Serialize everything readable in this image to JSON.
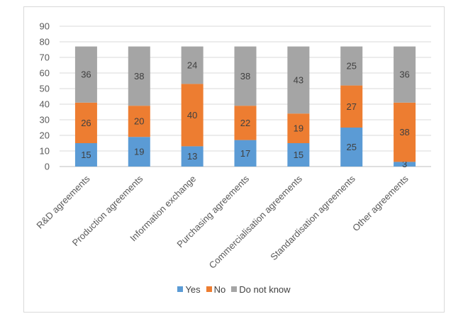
{
  "chart_data": {
    "type": "bar",
    "stacked": true,
    "categories": [
      "R&D agreements",
      "Production agreements",
      "Information exchange",
      "Purchasing agreements",
      "Commercialisation agreements",
      "Standardisation agreements",
      "Other agreements"
    ],
    "series": [
      {
        "name": "Yes",
        "color": "#5b9bd5",
        "values": [
          15,
          19,
          13,
          17,
          15,
          25,
          3
        ]
      },
      {
        "name": "No",
        "color": "#ed7d31",
        "values": [
          26,
          20,
          40,
          22,
          19,
          27,
          38
        ]
      },
      {
        "name": "Do not know",
        "color": "#a5a5a5",
        "values": [
          36,
          38,
          24,
          38,
          43,
          25,
          36
        ]
      }
    ],
    "ylim": [
      0,
      90
    ],
    "yticks": [
      0,
      10,
      20,
      30,
      40,
      50,
      60,
      70,
      80,
      90
    ],
    "grid": true,
    "legend_position": "bottom"
  }
}
